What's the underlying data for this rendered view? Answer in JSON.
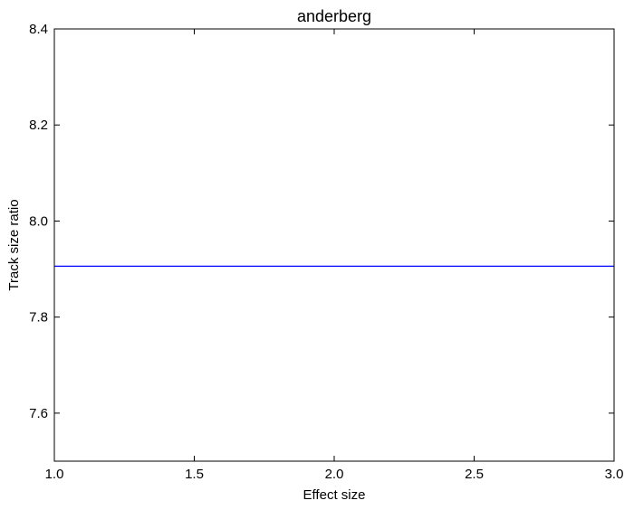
{
  "chart_data": {
    "type": "line",
    "title": "anderberg",
    "xlabel": "Effect size",
    "ylabel": "Track size ratio",
    "xlim": [
      1.0,
      3.0
    ],
    "ylim": [
      7.5,
      8.4
    ],
    "xticks": [
      1.0,
      1.5,
      2.0,
      2.5,
      3.0
    ],
    "xtick_labels": [
      "1.0",
      "1.5",
      "2.0",
      "2.5",
      "3.0"
    ],
    "yticks": [
      7.6,
      7.8,
      8.0,
      8.2,
      8.4
    ],
    "ytick_labels": [
      "7.6",
      "7.8",
      "8.0",
      "8.2",
      "8.4"
    ],
    "grid": false,
    "series": [
      {
        "color": "#0000ff",
        "x": [
          1.0,
          3.0
        ],
        "y": [
          7.906,
          7.906
        ]
      }
    ]
  }
}
